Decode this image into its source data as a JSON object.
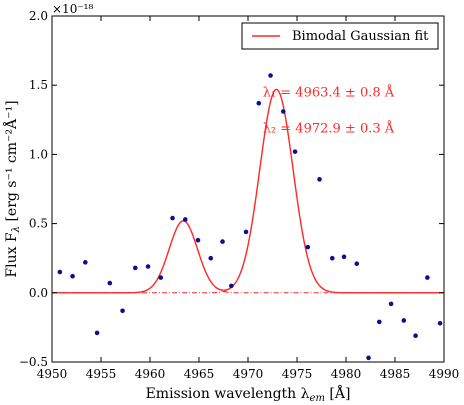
{
  "chart_data": {
    "type": "scatter",
    "xlabel": "Emission wavelength λ",
    "xlabel_sub": "em",
    "xlabel_unit": " [Å]",
    "ylabel": "Flux F",
    "ylabel_sub": "λ",
    "ylabel_unit": " [erg s⁻¹ cm⁻²Å⁻¹]",
    "y_multiplier": "×10⁻¹⁸",
    "xlim": [
      4950,
      4990
    ],
    "ylim": [
      -0.5,
      2.0
    ],
    "xticks": [
      4950,
      4955,
      4960,
      4965,
      4970,
      4975,
      4980,
      4985,
      4990
    ],
    "yticks": [
      -0.5,
      0.0,
      0.5,
      1.0,
      1.5,
      2.0
    ],
    "ytick_labels": [
      "−0.5",
      "0.0",
      "0.5",
      "1.0",
      "1.5",
      "2.0"
    ],
    "legend": {
      "label": "Bimodal Gaussian fit",
      "placement": "top-right"
    },
    "annotations": [
      {
        "text": "λ₁ = 4963.4 ± 0.8 Å",
        "x": 4971.5,
        "y": 1.42
      },
      {
        "text": "λ₂ = 4972.9 ± 0.3 Å",
        "x": 4971.5,
        "y": 1.16
      }
    ],
    "fit": {
      "components": [
        {
          "amplitude": 0.52,
          "center": 4963.4,
          "sigma": 1.45
        },
        {
          "amplitude": 1.47,
          "center": 4972.9,
          "sigma": 1.7
        }
      ]
    },
    "points": [
      {
        "x": 4950.8,
        "y": 0.15
      },
      {
        "x": 4952.1,
        "y": 0.12
      },
      {
        "x": 4953.4,
        "y": 0.22
      },
      {
        "x": 4954.6,
        "y": -0.29
      },
      {
        "x": 4955.9,
        "y": 0.07
      },
      {
        "x": 4957.2,
        "y": -0.13
      },
      {
        "x": 4958.5,
        "y": 0.18
      },
      {
        "x": 4959.8,
        "y": 0.19
      },
      {
        "x": 4961.1,
        "y": 0.11
      },
      {
        "x": 4962.3,
        "y": 0.54
      },
      {
        "x": 4963.6,
        "y": 0.53
      },
      {
        "x": 4964.9,
        "y": 0.38
      },
      {
        "x": 4966.2,
        "y": 0.25
      },
      {
        "x": 4967.4,
        "y": 0.37
      },
      {
        "x": 4968.3,
        "y": 0.05
      },
      {
        "x": 4969.8,
        "y": 0.44
      },
      {
        "x": 4971.1,
        "y": 1.37
      },
      {
        "x": 4972.3,
        "y": 1.57
      },
      {
        "x": 4973.6,
        "y": 1.31
      },
      {
        "x": 4974.8,
        "y": 1.02
      },
      {
        "x": 4976.1,
        "y": 0.33
      },
      {
        "x": 4977.3,
        "y": 0.82
      },
      {
        "x": 4978.6,
        "y": 0.25
      },
      {
        "x": 4979.8,
        "y": 0.26
      },
      {
        "x": 4981.1,
        "y": 0.21
      },
      {
        "x": 4982.3,
        "y": -0.47
      },
      {
        "x": 4983.4,
        "y": -0.21
      },
      {
        "x": 4984.6,
        "y": -0.08
      },
      {
        "x": 4985.9,
        "y": -0.2
      },
      {
        "x": 4987.1,
        "y": -0.31
      },
      {
        "x": 4988.3,
        "y": 0.11
      },
      {
        "x": 4989.6,
        "y": -0.22
      }
    ],
    "colors": {
      "fit": "#ff2a2a",
      "points": "#0b108f",
      "axes": "#000000"
    },
    "grid": false
  }
}
